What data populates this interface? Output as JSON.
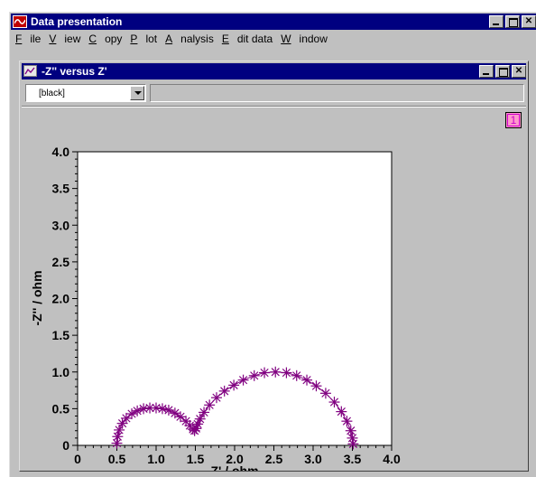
{
  "app": {
    "title": "Data presentation",
    "menu": [
      "File",
      "View",
      "Copy",
      "Plot",
      "Analysis",
      "Edit data",
      "Window"
    ],
    "menu_underline": [
      0,
      0,
      0,
      0,
      0,
      0,
      0
    ]
  },
  "child": {
    "title": "-Z'' versus Z'",
    "combo_value": "[black]",
    "badge": "1"
  },
  "colors": {
    "titlebar": "#000080",
    "marker": "#800080",
    "badge": "#ff99cc"
  },
  "chart_data": {
    "type": "scatter",
    "xlabel": "Z' / ohm",
    "ylabel": "-Z'' / ohm",
    "xlim": [
      0,
      4.0
    ],
    "ylim": [
      0,
      4.0
    ],
    "x_ticks": [
      "0",
      "0.5",
      "1.0",
      "1.5",
      "2.0",
      "2.5",
      "3.0",
      "3.5",
      "4.0"
    ],
    "y_ticks": [
      "0",
      "0.5",
      "1.0",
      "1.5",
      "2.0",
      "2.5",
      "3.0",
      "3.5",
      "4.0"
    ],
    "marker": "asterisk",
    "grid": false,
    "series": [
      {
        "x": [
          0.5,
          0.51,
          0.53,
          0.57,
          0.62,
          0.69,
          0.76,
          0.84,
          0.92,
          1.0,
          1.08,
          1.16,
          1.24,
          1.31,
          1.38,
          1.43,
          1.47,
          1.49,
          1.51,
          1.53,
          1.56,
          1.61,
          1.68,
          1.77,
          1.87,
          1.99,
          2.11,
          2.25,
          2.38,
          2.52,
          2.66,
          2.79,
          2.92,
          3.04,
          3.16,
          3.27,
          3.36,
          3.43,
          3.48,
          3.5,
          3.51
        ],
        "y": [
          0.03,
          0.12,
          0.21,
          0.3,
          0.37,
          0.43,
          0.47,
          0.5,
          0.51,
          0.51,
          0.5,
          0.48,
          0.44,
          0.39,
          0.33,
          0.27,
          0.22,
          0.2,
          0.23,
          0.29,
          0.36,
          0.45,
          0.55,
          0.65,
          0.74,
          0.82,
          0.89,
          0.95,
          0.99,
          1.0,
          0.99,
          0.95,
          0.89,
          0.81,
          0.71,
          0.59,
          0.46,
          0.33,
          0.2,
          0.1,
          0.02
        ]
      }
    ]
  }
}
